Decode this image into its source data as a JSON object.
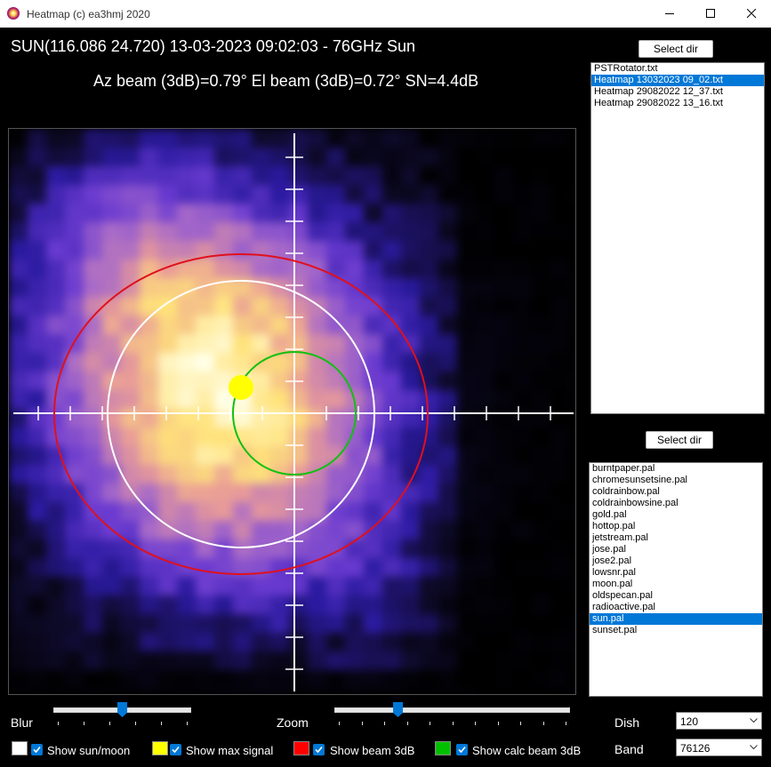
{
  "window": {
    "title": "Heatmap (c) ea3hmj 2020",
    "app_icon": "sun-app-icon",
    "controls": {
      "minimize_icon": "minimize-icon",
      "maximize_icon": "maximize-icon",
      "close_icon": "close-icon"
    }
  },
  "header": {
    "line1": "SUN(116.086 24.720) 13-03-2023 09:02:03 - 76GHz Sun",
    "line2": "Az beam (3dB)=0.79° El beam (3dB)=0.72° SN=4.4dB"
  },
  "files": {
    "select_label": "Select dir",
    "items": [
      "PSTRotator.txt",
      "Heatmap 13032023 09_02.txt",
      "Heatmap 29082022 12_37.txt",
      "Heatmap 29082022 13_16.txt"
    ],
    "selected": "Heatmap 13032023 09_02.txt"
  },
  "palettes": {
    "select_label": "Select dir",
    "items": [
      "burntpaper.pal",
      "chromesunsetsine.pal",
      "coldrainbow.pal",
      "coldrainbowsine.pal",
      "gold.pal",
      "hottop.pal",
      "jetstream.pal",
      "jose.pal",
      "jose2.pal",
      "lowsnr.pal",
      "moon.pal",
      "oldspecan.pal",
      "radioactive.pal",
      "sun.pal",
      "sunset.pal"
    ],
    "selected": "sun.pal"
  },
  "controls": {
    "blur": {
      "label": "Blur",
      "value_fraction": 0.5
    },
    "zoom": {
      "label": "Zoom",
      "value_fraction": 0.26
    },
    "dish": {
      "label": "Dish",
      "value": "120"
    },
    "band": {
      "label": "Band",
      "value": "76126"
    }
  },
  "options": [
    {
      "key": "sun_moon",
      "label": "Show sun/moon",
      "color": "#ffffff",
      "checked": true
    },
    {
      "key": "max_signal",
      "label": "Show max signal",
      "color": "#ffff00",
      "checked": true
    },
    {
      "key": "beam_3db",
      "label": "Show beam 3dB",
      "color": "#ff0000",
      "checked": true
    },
    {
      "key": "calc_beam_3db",
      "label": "Show calc beam 3dB",
      "color": "#00c000",
      "checked": true
    }
  ],
  "heatmap": {
    "palette_colors": [
      "#000000",
      "#0e0a2a",
      "#2a1aa0",
      "#6a3ad0",
      "#a86ac8",
      "#e89a98",
      "#ffe27a",
      "#ffffe8"
    ],
    "overlay_colors": {
      "sun_moon": "#ffffff",
      "max_signal": "#ffff00",
      "beam_3db": "#e0101c",
      "calc_beam_3db": "#10c010",
      "axes": "#ffffff"
    }
  }
}
